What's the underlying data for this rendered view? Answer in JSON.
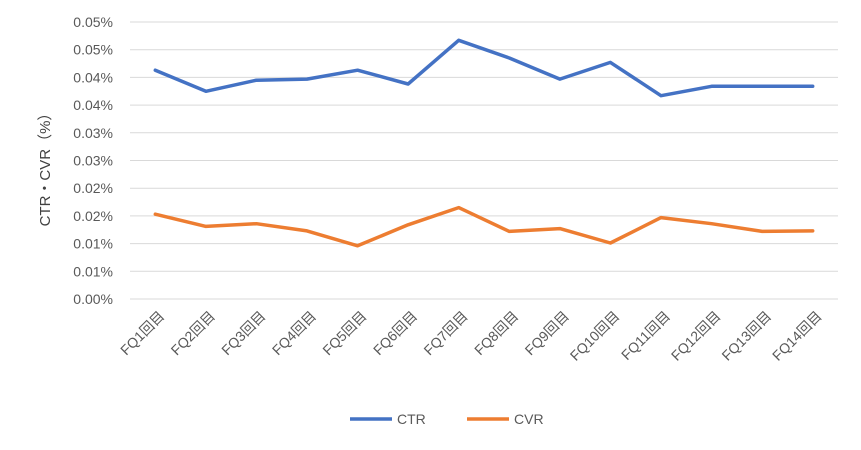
{
  "chart_data": {
    "type": "line",
    "title": "",
    "xlabel": "",
    "ylabel": "CTR・CVR（%）",
    "categories": [
      "FQ1回目",
      "FQ2回目",
      "FQ3回目",
      "FQ4回目",
      "FQ5回目",
      "FQ6回目",
      "FQ7回目",
      "FQ8回目",
      "FQ9回目",
      "FQ10回目",
      "FQ11回目",
      "FQ12回目",
      "FQ13回目",
      "FQ14回目"
    ],
    "ylim": [
      0,
      0.05
    ],
    "yticks": [
      0,
      0.005,
      0.01,
      0.015,
      0.02,
      0.025,
      0.03,
      0.035,
      0.04,
      0.045,
      0.05
    ],
    "ytick_labels": [
      "0.00%",
      "0.01%",
      "0.01%",
      "0.02%",
      "0.02%",
      "0.03%",
      "0.03%",
      "0.04%",
      "0.04%",
      "0.05%",
      "0.05%"
    ],
    "grid": true,
    "legend_position": "bottom",
    "series": [
      {
        "name": "CTR",
        "color": "#4472C4",
        "values": [
          0.0413,
          0.0375,
          0.0395,
          0.0397,
          0.0413,
          0.0388,
          0.0467,
          0.0435,
          0.0397,
          0.0427,
          0.0367,
          0.0384,
          0.0384,
          0.0384
        ]
      },
      {
        "name": "CVR",
        "color": "#ED7D31",
        "values": [
          0.0153,
          0.0131,
          0.0136,
          0.0123,
          0.0096,
          0.0134,
          0.0165,
          0.0122,
          0.0127,
          0.0101,
          0.0147,
          0.0136,
          0.0122,
          0.0123
        ]
      }
    ]
  }
}
